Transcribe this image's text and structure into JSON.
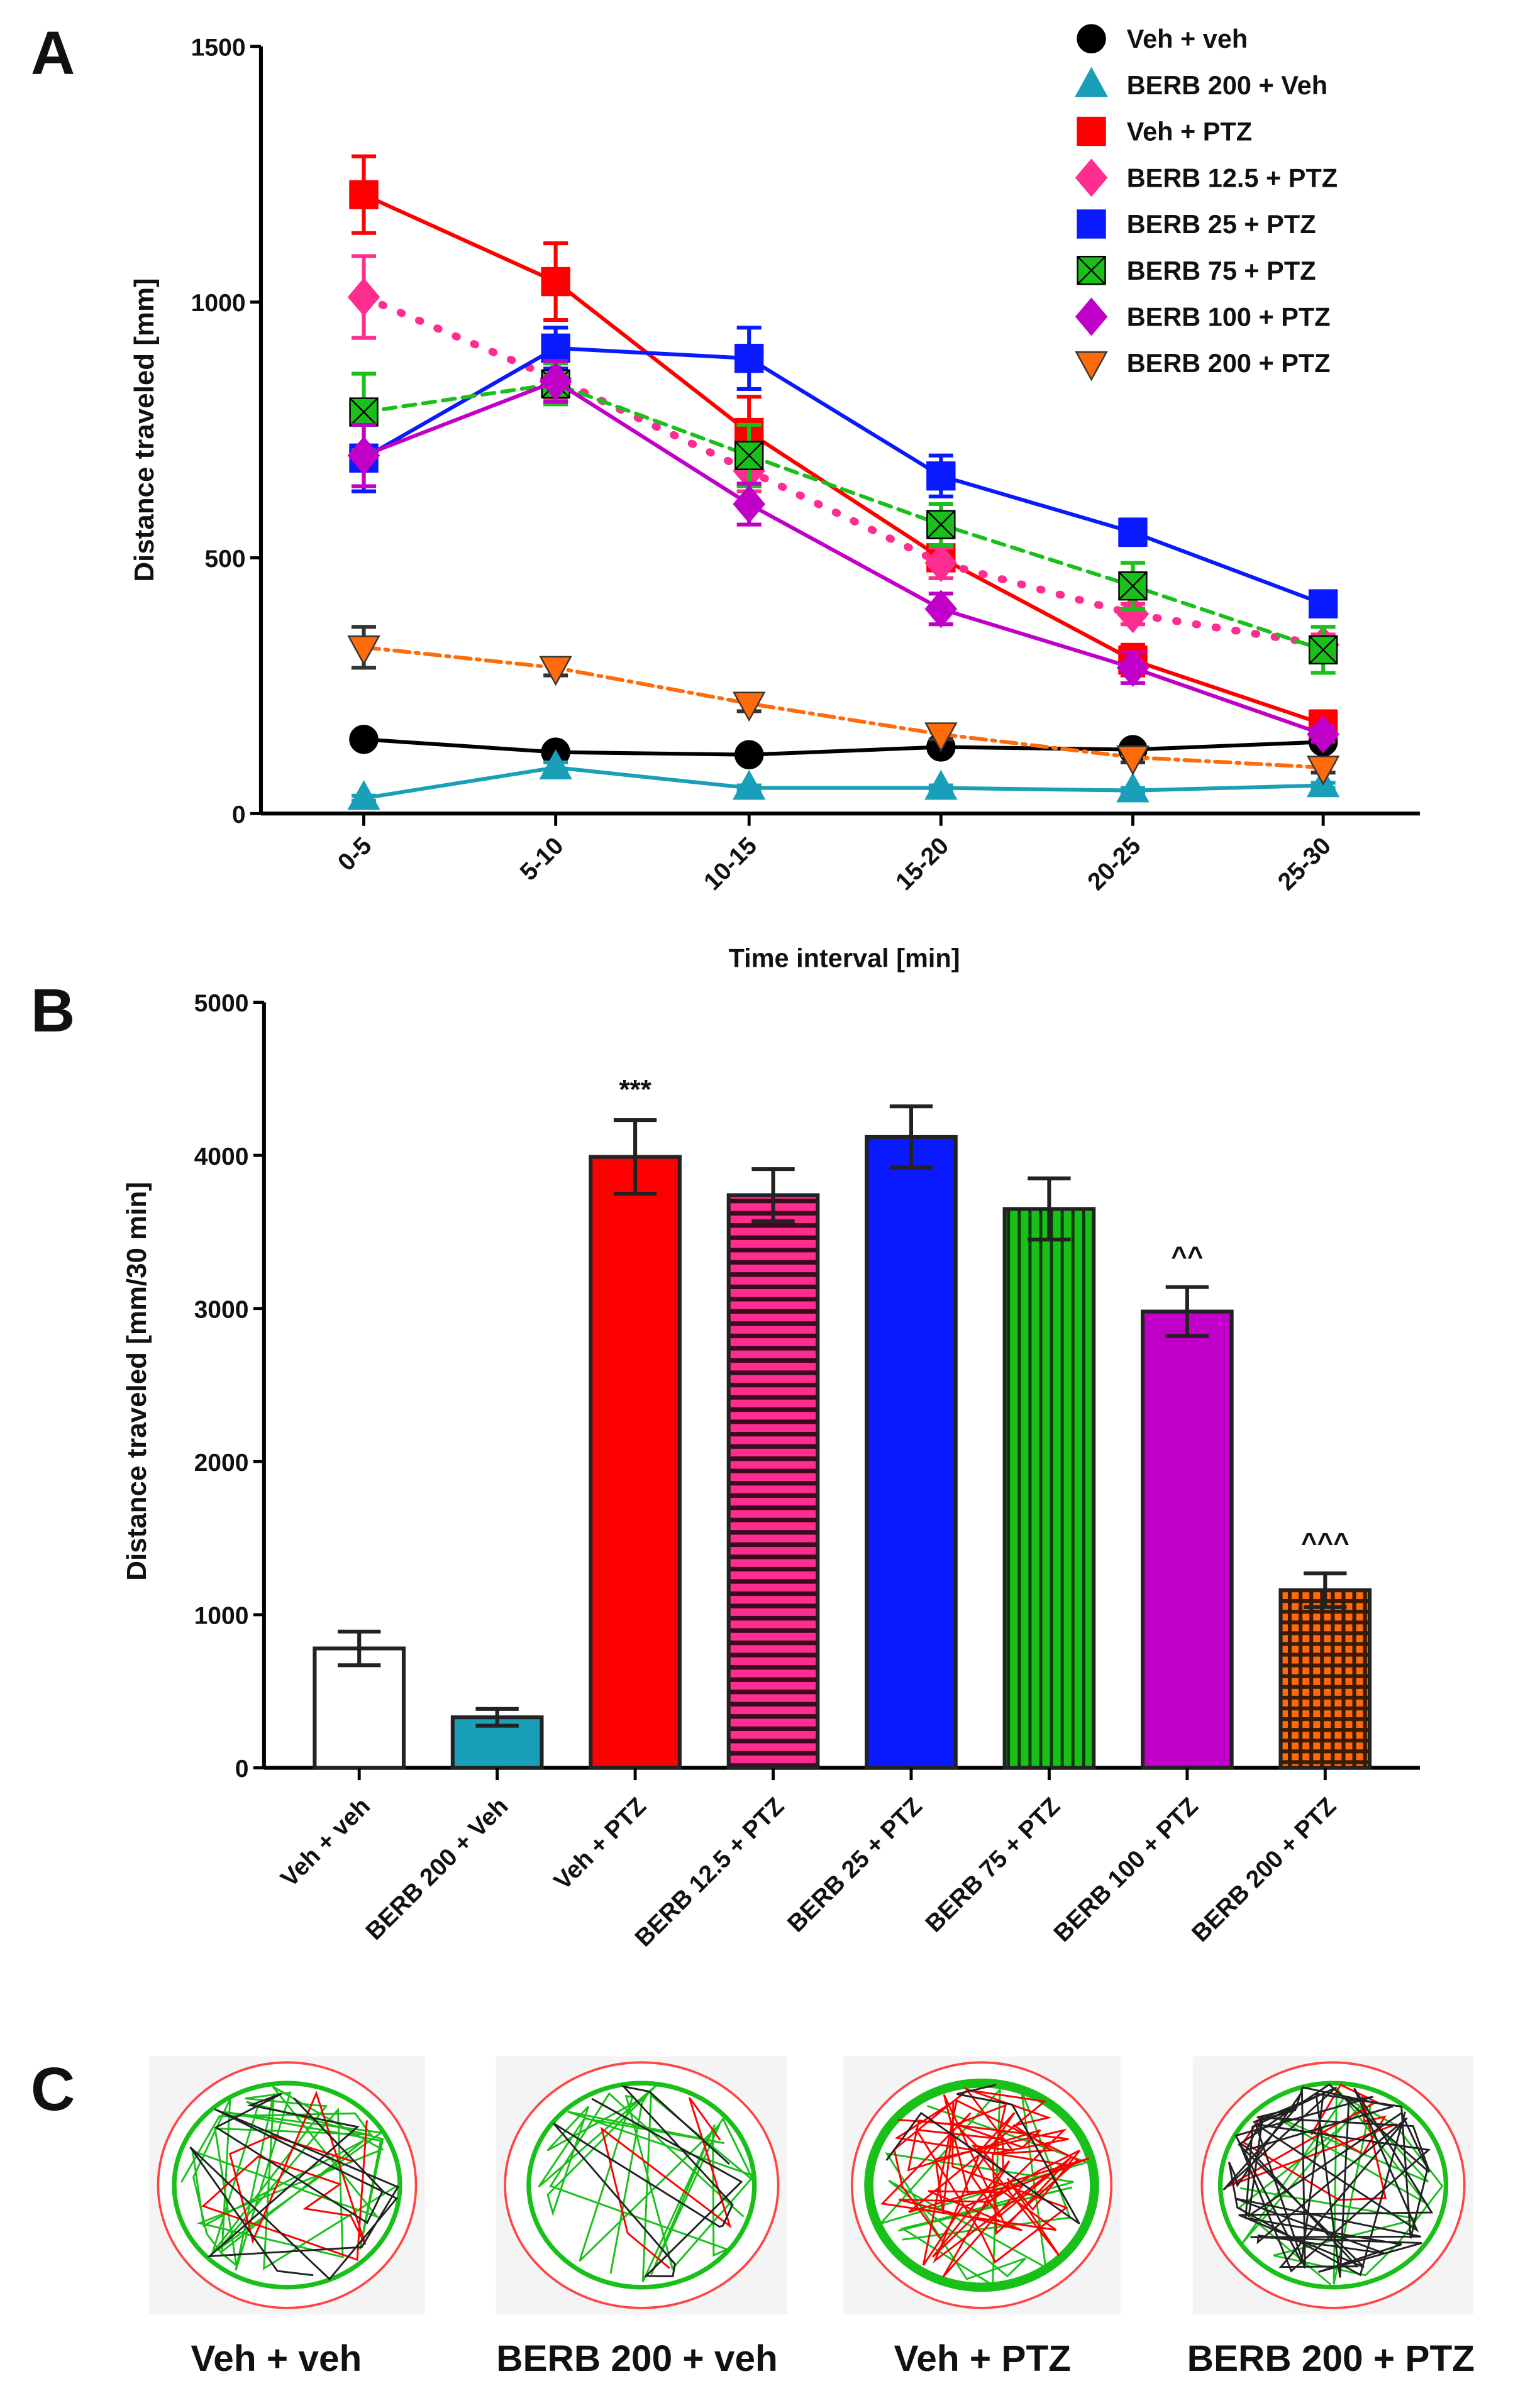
{
  "chart_data": [
    {
      "panel": "A",
      "type": "line",
      "xlabel": "Time interval [min]",
      "ylabel": "Distance traveled [mm]",
      "ylim": [
        0,
        1500
      ],
      "yticks": [
        0,
        500,
        1000,
        1500
      ],
      "categories": [
        "0-5",
        "5-10",
        "10-15",
        "15-20",
        "20-25",
        "25-30"
      ],
      "legend_position": "top-right",
      "series": [
        {
          "name": "Veh + veh",
          "color": "#000000",
          "marker": "circle",
          "dash": "solid",
          "values": [
            145,
            120,
            115,
            130,
            125,
            140
          ],
          "err": [
            10,
            10,
            10,
            10,
            10,
            10
          ]
        },
        {
          "name": "BERB 200 + Veh",
          "color": "#1a9fb8",
          "marker": "triangle",
          "dash": "solid",
          "values": [
            30,
            90,
            50,
            50,
            45,
            55
          ],
          "err": [
            5,
            10,
            5,
            5,
            5,
            5
          ]
        },
        {
          "name": "Veh + PTZ",
          "color": "#ff0000",
          "marker": "square",
          "dash": "solid",
          "values": [
            1210,
            1040,
            745,
            500,
            300,
            175
          ],
          "err": [
            75,
            75,
            70,
            40,
            30,
            25
          ]
        },
        {
          "name": "BERB 12.5 + PTZ",
          "color": "#ff2d8f",
          "marker": "diamond",
          "dash": "dotted",
          "values": [
            1010,
            850,
            670,
            490,
            390,
            330
          ],
          "err": [
            80,
            40,
            40,
            30,
            20,
            20
          ]
        },
        {
          "name": "BERB 25 + PTZ",
          "color": "#0a1aff",
          "marker": "square",
          "dash": "solid",
          "values": [
            695,
            910,
            890,
            660,
            550,
            410
          ],
          "err": [
            65,
            40,
            60,
            40,
            25,
            20
          ]
        },
        {
          "name": "BERB 75 + PTZ",
          "color": "#19c019",
          "marker": "square-x",
          "dash": "dashed",
          "values": [
            785,
            840,
            700,
            565,
            445,
            320
          ],
          "err": [
            75,
            40,
            60,
            40,
            45,
            45
          ]
        },
        {
          "name": "BERB 100 + PTZ",
          "color": "#c000c8",
          "marker": "diamond",
          "dash": "solid",
          "values": [
            700,
            845,
            605,
            400,
            285,
            155
          ],
          "err": [
            60,
            40,
            40,
            30,
            30,
            15
          ]
        },
        {
          "name": "BERB 200 + PTZ",
          "color": "#ff6a0a",
          "marker": "triangle-down",
          "dash": "dashdot",
          "values": [
            325,
            285,
            215,
            155,
            110,
            90
          ],
          "err": [
            40,
            15,
            15,
            10,
            10,
            10
          ]
        }
      ]
    },
    {
      "panel": "B",
      "type": "bar",
      "ylabel": "Distance traveled [mm/30 min]",
      "ylim": [
        0,
        5000
      ],
      "yticks": [
        0,
        1000,
        2000,
        3000,
        4000,
        5000
      ],
      "categories": [
        "Veh + veh",
        "BERB 200 + Veh",
        "Veh + PTZ",
        "BERB 12.5 + PTZ",
        "BERB 25 + PTZ",
        "BERB 75 + PTZ",
        "BERB 100 + PTZ",
        "BERB 200 + PTZ"
      ],
      "values": [
        780,
        330,
        3990,
        3740,
        4120,
        3650,
        2980,
        1160
      ],
      "err": [
        110,
        55,
        240,
        170,
        200,
        200,
        160,
        110
      ],
      "fills": [
        "#ffffff",
        "#1a9fb8",
        "#ff0000",
        "pink-stripes",
        "#0a1aff",
        "green-vstripes",
        "#c000c8",
        "orange-grid"
      ],
      "annotations": [
        "",
        "",
        "***",
        "",
        "",
        "",
        "^^",
        "^^^"
      ]
    }
  ],
  "panel_labels": [
    "A",
    "B",
    "C"
  ],
  "panel_c": {
    "tracks": [
      {
        "label": "Veh + veh"
      },
      {
        "label": "BERB 200 + veh"
      },
      {
        "label": "Veh + PTZ"
      },
      {
        "label": "BERB 200 + PTZ"
      }
    ]
  }
}
